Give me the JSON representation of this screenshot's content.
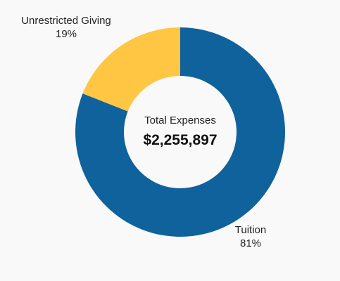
{
  "chart_data": {
    "type": "pie",
    "variant": "donut",
    "center": {
      "title": "Total Expenses",
      "value": "$2,255,897"
    },
    "slices": [
      {
        "name": "Tuition",
        "percent_label": "81%",
        "value": 81,
        "color": "#10629c"
      },
      {
        "name": "Unrestricted Giving",
        "percent_label": "19%",
        "value": 19,
        "color": "#fec643"
      }
    ],
    "start_angle_deg": 0,
    "direction": "clockwise",
    "legend": "none"
  }
}
